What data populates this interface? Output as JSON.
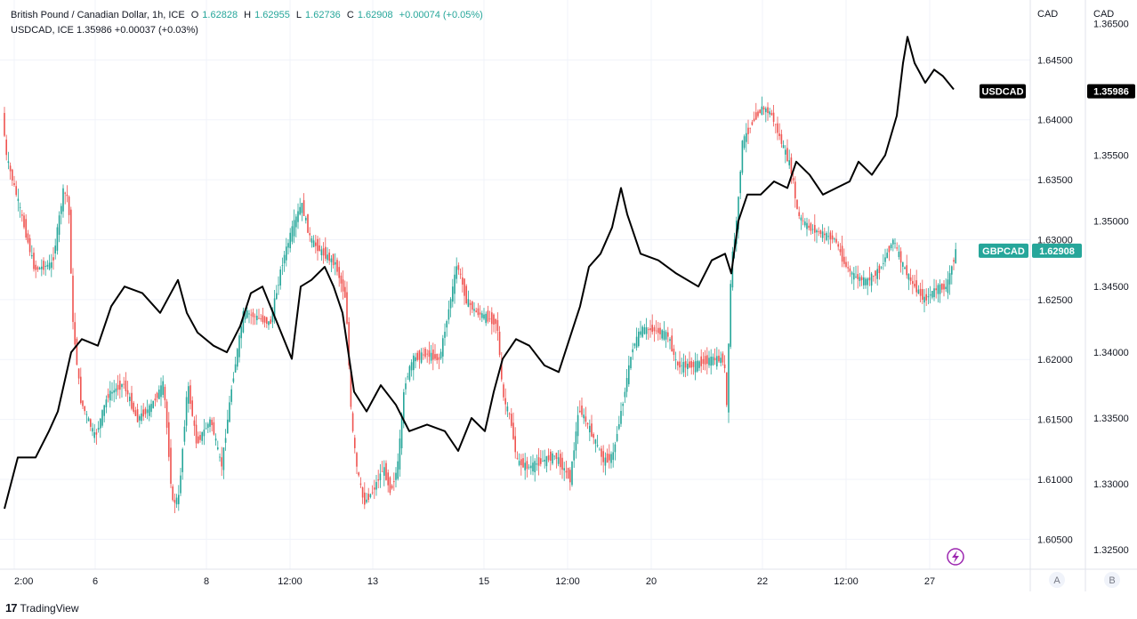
{
  "legend": {
    "main_title": "British Pound / Canadian Dollar, 1h, ICE",
    "o_label": "O",
    "o_value": "1.62828",
    "h_label": "H",
    "h_value": "1.62955",
    "l_label": "L",
    "l_value": "1.62736",
    "c_label": "C",
    "c_value": "1.62908",
    "change": "+0.00074 (+0.05%)",
    "compare_line": "USDCAD, ICE  1.35986  +0.00037 (+0.03%)"
  },
  "axis_headers": {
    "left": "CAD",
    "right": "CAD"
  },
  "scale_buttons": {
    "a": "A",
    "b": "B"
  },
  "footer": {
    "brand": "TradingView",
    "logo": "17"
  },
  "colors": {
    "up": "#26a69a",
    "down": "#ef5350",
    "line": "#000000",
    "grid": "#f0f3fa"
  },
  "chart_data": {
    "type": "candlestick-with-line-overlay",
    "x_ticks": [
      "2:00",
      "6",
      "8",
      "12:00",
      "13",
      "15",
      "12:00",
      "20",
      "22",
      "12:00",
      "27"
    ],
    "left_axis": {
      "label": "CAD",
      "ticks": [
        "1.64500",
        "1.64000",
        "1.63500",
        "1.63000",
        "1.62500",
        "1.62000",
        "1.61500",
        "1.61000",
        "1.60500"
      ],
      "ylim": [
        1.6025,
        1.65
      ]
    },
    "right_axis": {
      "label": "CAD",
      "ticks": [
        "1.36500",
        "1.36000",
        "1.35500",
        "1.35000",
        "1.34500",
        "1.34000",
        "1.33500",
        "1.33000",
        "1.32500"
      ],
      "ylim": [
        1.3235,
        1.3668
      ]
    },
    "series": [
      {
        "name": "GBPCAD",
        "axis": "left",
        "last_value": "1.62908",
        "color": "#26a69a",
        "path": [
          [
            0,
            1.644
          ],
          [
            8,
            1.637
          ],
          [
            22,
            1.633
          ],
          [
            40,
            1.6275
          ],
          [
            60,
            1.628
          ],
          [
            72,
            1.634
          ],
          [
            78,
            1.6335
          ],
          [
            83,
            1.623
          ],
          [
            92,
            1.6165
          ],
          [
            100,
            1.615
          ],
          [
            108,
            1.6135
          ],
          [
            122,
            1.617
          ],
          [
            140,
            1.618
          ],
          [
            155,
            1.615
          ],
          [
            170,
            1.616
          ],
          [
            185,
            1.618
          ],
          [
            195,
            1.608
          ],
          [
            202,
            1.6085
          ],
          [
            212,
            1.618
          ],
          [
            222,
            1.613
          ],
          [
            238,
            1.615
          ],
          [
            250,
            1.611
          ],
          [
            262,
            1.618
          ],
          [
            275,
            1.624
          ],
          [
            290,
            1.6235
          ],
          [
            305,
            1.623
          ],
          [
            318,
            1.628
          ],
          [
            330,
            1.631
          ],
          [
            340,
            1.633
          ],
          [
            350,
            1.63
          ],
          [
            362,
            1.629
          ],
          [
            378,
            1.628
          ],
          [
            390,
            1.625
          ],
          [
            396,
            1.615
          ],
          [
            402,
            1.611
          ],
          [
            410,
            1.608
          ],
          [
            420,
            1.609
          ],
          [
            432,
            1.611
          ],
          [
            440,
            1.609
          ],
          [
            448,
            1.611
          ],
          [
            456,
            1.618
          ],
          [
            465,
            1.62
          ],
          [
            480,
            1.6205
          ],
          [
            495,
            1.62
          ],
          [
            505,
            1.624
          ],
          [
            515,
            1.628
          ],
          [
            525,
            1.625
          ],
          [
            535,
            1.624
          ],
          [
            548,
            1.6235
          ],
          [
            560,
            1.623
          ],
          [
            566,
            1.617
          ],
          [
            575,
            1.615
          ],
          [
            582,
            1.6115
          ],
          [
            595,
            1.611
          ],
          [
            610,
            1.6115
          ],
          [
            625,
            1.612
          ],
          [
            642,
            1.61
          ],
          [
            652,
            1.616
          ],
          [
            665,
            1.614
          ],
          [
            680,
            1.6115
          ],
          [
            690,
            1.612
          ],
          [
            700,
            1.616
          ],
          [
            712,
            1.621
          ],
          [
            722,
            1.6225
          ],
          [
            735,
            1.6225
          ],
          [
            752,
            1.622
          ],
          [
            762,
            1.6195
          ],
          [
            780,
            1.6195
          ],
          [
            800,
            1.62
          ],
          [
            815,
            1.62
          ],
          [
            818,
            1.616
          ],
          [
            823,
            1.628
          ],
          [
            830,
            1.632
          ],
          [
            835,
            1.638
          ],
          [
            848,
            1.64
          ],
          [
            858,
            1.641
          ],
          [
            868,
            1.6405
          ],
          [
            880,
            1.638
          ],
          [
            890,
            1.636
          ],
          [
            898,
            1.632
          ],
          [
            910,
            1.631
          ],
          [
            925,
            1.6305
          ],
          [
            940,
            1.63
          ],
          [
            950,
            1.628
          ],
          [
            960,
            1.627
          ],
          [
            975,
            1.6265
          ],
          [
            990,
            1.6275
          ],
          [
            1005,
            1.63
          ],
          [
            1015,
            1.628
          ],
          [
            1025,
            1.6265
          ],
          [
            1040,
            1.625
          ],
          [
            1055,
            1.626
          ],
          [
            1065,
            1.626
          ],
          [
            1075,
            1.629
          ]
        ]
      },
      {
        "name": "USDCAD",
        "axis": "right",
        "last_value": "1.35986",
        "color": "#000000",
        "path": [
          [
            5,
            1.3281
          ],
          [
            20,
            1.332
          ],
          [
            40,
            1.332
          ],
          [
            55,
            1.334
          ],
          [
            65,
            1.3355
          ],
          [
            80,
            1.34
          ],
          [
            92,
            1.341
          ],
          [
            110,
            1.3405
          ],
          [
            125,
            1.3435
          ],
          [
            140,
            1.345
          ],
          [
            160,
            1.3445
          ],
          [
            180,
            1.343
          ],
          [
            200,
            1.3455
          ],
          [
            210,
            1.343
          ],
          [
            222,
            1.3415
          ],
          [
            240,
            1.3405
          ],
          [
            255,
            1.34
          ],
          [
            270,
            1.342
          ],
          [
            282,
            1.3445
          ],
          [
            295,
            1.345
          ],
          [
            310,
            1.3425
          ],
          [
            328,
            1.3395
          ],
          [
            338,
            1.345
          ],
          [
            350,
            1.3455
          ],
          [
            365,
            1.3465
          ],
          [
            375,
            1.345
          ],
          [
            385,
            1.343
          ],
          [
            398,
            1.337
          ],
          [
            412,
            1.3355
          ],
          [
            428,
            1.3375
          ],
          [
            445,
            1.336
          ],
          [
            460,
            1.334
          ],
          [
            480,
            1.3345
          ],
          [
            500,
            1.334
          ],
          [
            515,
            1.3325
          ],
          [
            530,
            1.335
          ],
          [
            545,
            1.334
          ],
          [
            555,
            1.337
          ],
          [
            565,
            1.3395
          ],
          [
            580,
            1.341
          ],
          [
            595,
            1.3405
          ],
          [
            612,
            1.339
          ],
          [
            628,
            1.3385
          ],
          [
            640,
            1.341
          ],
          [
            652,
            1.3435
          ],
          [
            662,
            1.3465
          ],
          [
            675,
            1.3475
          ],
          [
            688,
            1.3495
          ],
          [
            698,
            1.3525
          ],
          [
            705,
            1.3505
          ],
          [
            720,
            1.3475
          ],
          [
            740,
            1.347
          ],
          [
            760,
            1.346
          ],
          [
            785,
            1.345
          ],
          [
            800,
            1.347
          ],
          [
            815,
            1.3475
          ],
          [
            822,
            1.346
          ],
          [
            830,
            1.35
          ],
          [
            840,
            1.352
          ],
          [
            855,
            1.352
          ],
          [
            870,
            1.353
          ],
          [
            885,
            1.3525
          ],
          [
            895,
            1.3545
          ],
          [
            910,
            1.3535
          ],
          [
            925,
            1.352
          ],
          [
            940,
            1.3525
          ],
          [
            955,
            1.353
          ],
          [
            965,
            1.3545
          ],
          [
            980,
            1.3535
          ],
          [
            995,
            1.355
          ],
          [
            1008,
            1.358
          ],
          [
            1015,
            1.362
          ],
          [
            1020,
            1.364
          ],
          [
            1028,
            1.362
          ],
          [
            1040,
            1.3605
          ],
          [
            1050,
            1.3615
          ],
          [
            1060,
            1.361
          ],
          [
            1072,
            1.36
          ]
        ]
      }
    ]
  }
}
